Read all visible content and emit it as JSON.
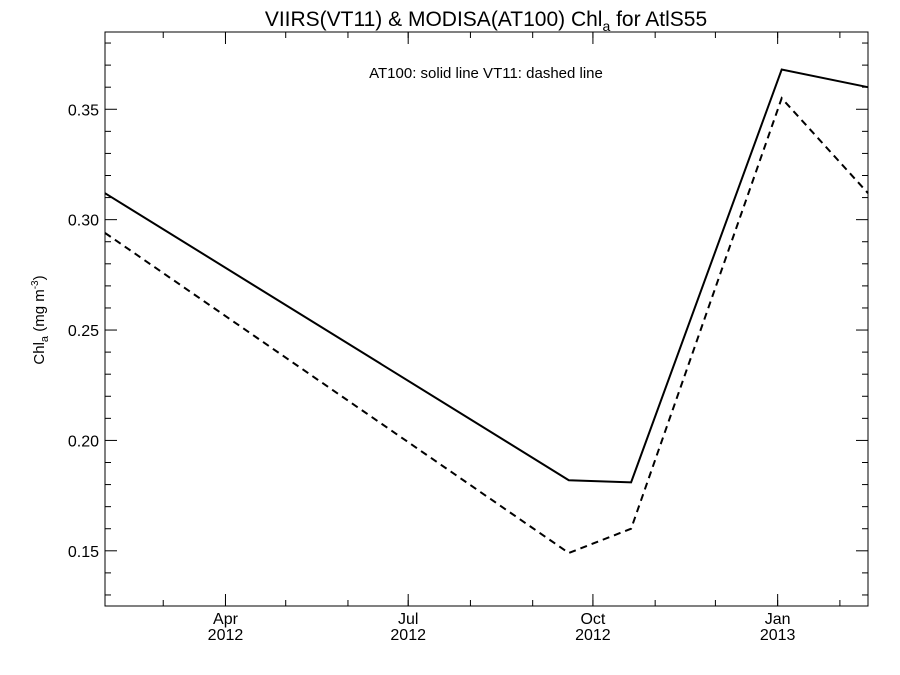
{
  "chart_data": {
    "type": "line",
    "title_main": "VIIRS(VT11) & MODISA(AT100)  Chl",
    "title_sub": "a",
    "title_tail": " for AtlS55",
    "annotation": "AT100: solid line   VT11: dashed line",
    "ylabel_main": "Chl",
    "ylabel_sub": "a",
    "ylabel_unit_pre": " (mg m",
    "ylabel_unit_sup": "-3",
    "ylabel_unit_post": ")",
    "xlim": [
      "2012-02-01",
      "2013-02-15"
    ],
    "ylim": [
      0.125,
      0.385
    ],
    "yticks": [
      {
        "value": 0.15,
        "label": "0.15"
      },
      {
        "value": 0.2,
        "label": "0.20"
      },
      {
        "value": 0.25,
        "label": "0.25"
      },
      {
        "value": 0.3,
        "label": "0.30"
      },
      {
        "value": 0.35,
        "label": "0.35"
      }
    ],
    "xticks": [
      {
        "date": "2012-04-01",
        "month": "Apr",
        "year": "2012"
      },
      {
        "date": "2012-07-01",
        "month": "Jul",
        "year": "2012"
      },
      {
        "date": "2012-10-01",
        "month": "Oct",
        "year": "2012"
      },
      {
        "date": "2013-01-01",
        "month": "Jan",
        "year": "2013"
      }
    ],
    "series": [
      {
        "name": "AT100",
        "style": "solid",
        "color": "#000000",
        "points": [
          {
            "x": "2012-02-01",
            "y": 0.312
          },
          {
            "x": "2012-09-19",
            "y": 0.182
          },
          {
            "x": "2012-10-20",
            "y": 0.181
          },
          {
            "x": "2013-01-03",
            "y": 0.368
          },
          {
            "x": "2013-02-15",
            "y": 0.36
          }
        ]
      },
      {
        "name": "VT11",
        "style": "dashed",
        "color": "#000000",
        "points": [
          {
            "x": "2012-02-01",
            "y": 0.294
          },
          {
            "x": "2012-09-19",
            "y": 0.149
          },
          {
            "x": "2012-10-20",
            "y": 0.16
          },
          {
            "x": "2013-01-03",
            "y": 0.355
          },
          {
            "x": "2013-02-15",
            "y": 0.312
          }
        ]
      }
    ]
  }
}
